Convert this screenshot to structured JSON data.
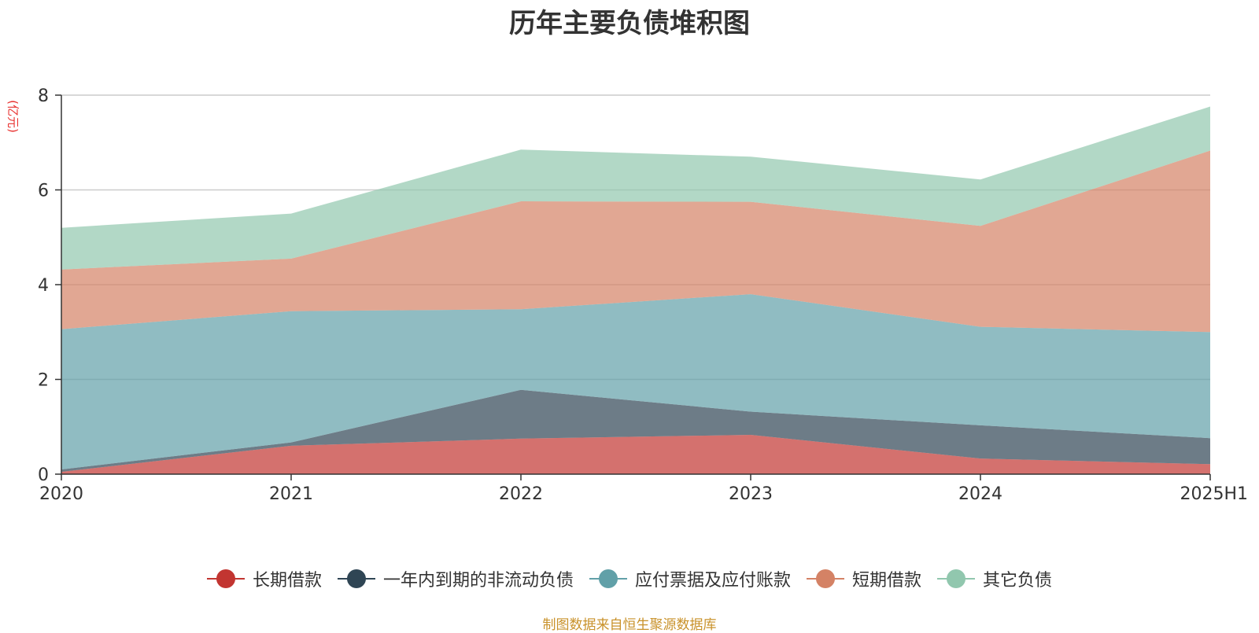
{
  "chart_data": {
    "type": "area",
    "stacked": true,
    "title": "历年主要负债堆积图",
    "ylabel": "(亿元)",
    "xlabel": "",
    "categories": [
      "2020",
      "2021",
      "2022",
      "2023",
      "2024",
      "2025H1"
    ],
    "ylim": [
      0,
      8
    ],
    "yticks": [
      0,
      2,
      4,
      6,
      8
    ],
    "grid": true,
    "legend_position": "bottom",
    "series": [
      {
        "name": "长期借款",
        "color": "#c23531",
        "values": [
          0.05,
          0.6,
          0.75,
          0.83,
          0.33,
          0.21
        ]
      },
      {
        "name": "一年内到期的非流动负债",
        "color": "#2f4554",
        "values": [
          0.05,
          0.07,
          1.03,
          0.49,
          0.7,
          0.55
        ]
      },
      {
        "name": "应付票据及应付账款",
        "color": "#61a0a8",
        "values": [
          2.96,
          2.77,
          1.7,
          2.48,
          2.08,
          2.24
        ]
      },
      {
        "name": "短期借款",
        "color": "#d48265",
        "values": [
          1.26,
          1.11,
          2.28,
          1.95,
          2.13,
          3.83
        ]
      },
      {
        "name": "其它负债",
        "color": "#91c7ae",
        "values": [
          0.88,
          0.95,
          1.09,
          0.95,
          0.98,
          0.93
        ]
      }
    ]
  },
  "source_note": "制图数据来自恒生聚源数据库"
}
